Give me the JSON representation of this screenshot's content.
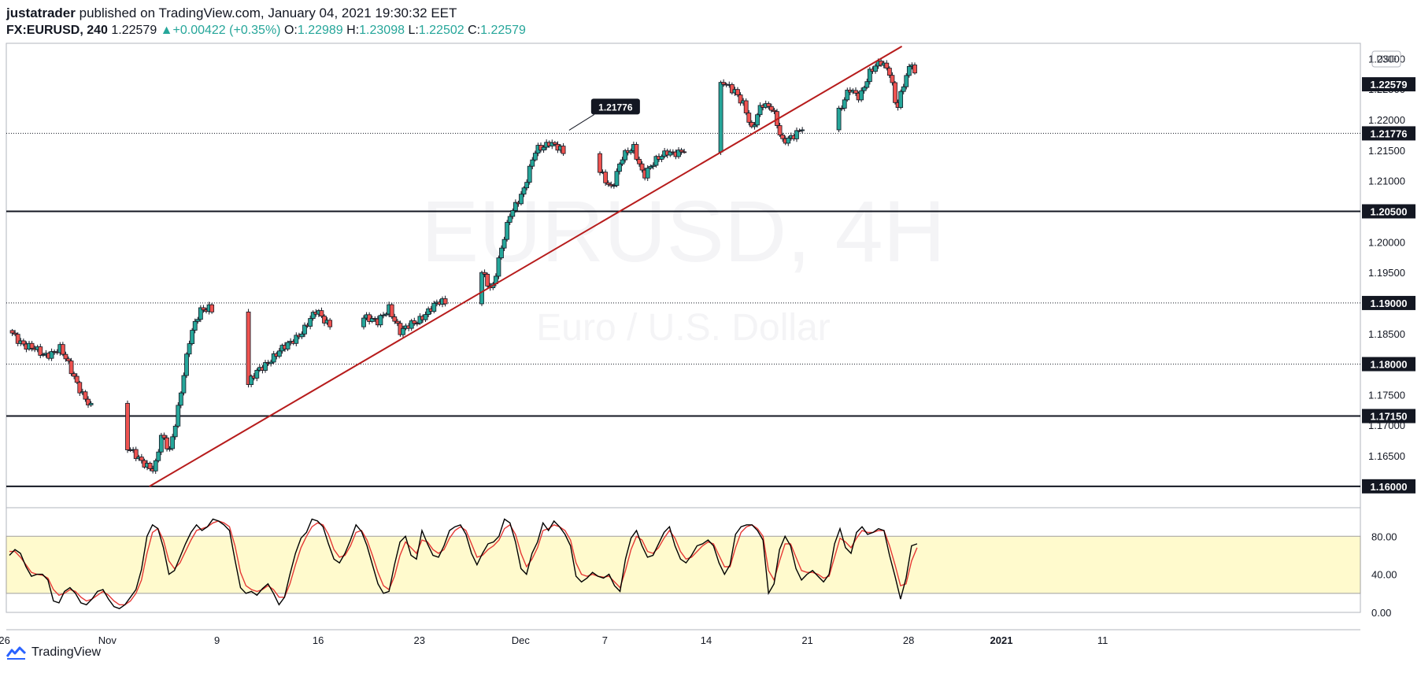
{
  "header": {
    "user": "justatrader",
    "published": "published on TradingView.com, January 04, 2021 19:30:32 EET",
    "symbol": "FX:EURUSD, 240",
    "last": "1.22579",
    "change": "+0.00422 (+0.35%)",
    "o_label": "O:",
    "o_value": "1.22989",
    "h_label": "H:",
    "h_value": "1.23098",
    "l_label": "L:",
    "l_value": "1.22502",
    "c_label": "C:",
    "c_value": "1.22579"
  },
  "footer": {
    "brand": "TradingView"
  },
  "colors": {
    "up": "#26a69a",
    "candle_up": "#26a69a",
    "candle_down": "#ef5350",
    "trendline": "#b71c1c",
    "stoch_k": "#000000",
    "stoch_d": "#e53935",
    "stoch_band": "#fffacd"
  },
  "chart_data": [
    {
      "type": "candlestick",
      "currency_label": "USD",
      "watermark": [
        "EURUSD, 4H",
        "Euro / U.S. Dollar"
      ],
      "ylim": [
        1.1565,
        1.2325
      ],
      "y_ticks": [
        "1.23000",
        "1.22500",
        "1.22000",
        "1.21500",
        "1.21000",
        "1.20500",
        "1.20000",
        "1.19500",
        "1.19000",
        "1.18500",
        "1.18000",
        "1.17500",
        "1.17000",
        "1.16500",
        "1.16000"
      ],
      "x_ticks": [
        "26",
        "Nov",
        "9",
        "16",
        "23",
        "Dec",
        "7",
        "14",
        "21",
        "28",
        "2021",
        "11"
      ],
      "last_price": "1.22579",
      "annotation": {
        "text": "1.21776",
        "value": 1.21776
      },
      "horizontal_levels": [
        {
          "value": 1.205,
          "label": "1.20500",
          "style": "solid"
        },
        {
          "value": 1.19,
          "label": "1.19000",
          "style": "dotted"
        },
        {
          "value": 1.18,
          "label": "1.18000",
          "style": "dotted"
        },
        {
          "value": 1.1715,
          "label": "1.17150",
          "style": "solid"
        },
        {
          "value": 1.16,
          "label": "1.16000",
          "style": "solid"
        },
        {
          "value": 1.21776,
          "label": "1.21776",
          "style": "dotted"
        }
      ],
      "trendline": {
        "from": {
          "day": 8.3,
          "price": 1.16
        },
        "to": {
          "day": 52.9,
          "price": 1.232
        }
      },
      "price_path": [
        [
          0,
          1.1855
        ],
        [
          1,
          1.183
        ],
        [
          2,
          1.1815
        ],
        [
          3,
          1.1825
        ],
        [
          4,
          1.177
        ],
        [
          5,
          1.172
        ],
        [
          6,
          1.1745
        ],
        [
          7,
          1.166
        ],
        [
          8,
          1.164
        ],
        [
          8.6,
          1.1625
        ],
        [
          9,
          1.168
        ],
        [
          9.5,
          1.166
        ],
        [
          10,
          1.173
        ],
        [
          10.7,
          1.184
        ],
        [
          11.3,
          1.189
        ],
        [
          11.8,
          1.1895
        ],
        [
          12.3,
          1.188
        ],
        [
          12.6,
          1.1815
        ],
        [
          13,
          1.181
        ],
        [
          13.5,
          1.183
        ],
        [
          14,
          1.176
        ],
        [
          14.8,
          1.179
        ],
        [
          15.5,
          1.181
        ],
        [
          16.5,
          1.183
        ],
        [
          17.5,
          1.186
        ],
        [
          18.2,
          1.1885
        ],
        [
          18.8,
          1.187
        ],
        [
          19.5,
          1.186
        ],
        [
          20.2,
          1.1845
        ],
        [
          21,
          1.188
        ],
        [
          21.8,
          1.1865
        ],
        [
          22.5,
          1.1895
        ],
        [
          23.2,
          1.185
        ],
        [
          24.5,
          1.188
        ],
        [
          25.5,
          1.19
        ],
        [
          26.5,
          1.1905
        ],
        [
          27.2,
          1.1925
        ],
        [
          28,
          1.1955
        ],
        [
          28.6,
          1.192
        ],
        [
          29.2,
          1.199
        ],
        [
          29.7,
          1.205
        ],
        [
          30.5,
          1.2085
        ],
        [
          31.2,
          1.215
        ],
        [
          32,
          1.2165
        ],
        [
          32.8,
          1.2145
        ],
        [
          33.5,
          1.21
        ],
        [
          34.2,
          1.2125
        ],
        [
          35,
          1.2115
        ],
        [
          35.7,
          1.209
        ],
        [
          36.3,
          1.2135
        ],
        [
          37,
          1.2155
        ],
        [
          37.6,
          1.211
        ],
        [
          38.3,
          1.213
        ],
        [
          39,
          1.215
        ],
        [
          39.7,
          1.2145
        ],
        [
          40.4,
          1.215
        ],
        [
          41.1,
          1.22
        ],
        [
          41.7,
          1.2225
        ],
        [
          42.3,
          1.226
        ],
        [
          43,
          1.225
        ],
        [
          43.5,
          1.2225
        ],
        [
          44,
          1.218
        ],
        [
          44.6,
          1.223
        ],
        [
          45.2,
          1.222
        ],
        [
          45.8,
          1.216
        ],
        [
          46.6,
          1.218
        ],
        [
          47.4,
          1.2195
        ],
        [
          48,
          1.2175
        ],
        [
          48.6,
          1.224
        ],
        [
          49.2,
          1.221
        ],
        [
          49.8,
          1.225
        ],
        [
          50.4,
          1.224
        ],
        [
          51,
          1.2275
        ],
        [
          51.7,
          1.2295
        ],
        [
          52.2,
          1.228
        ],
        [
          52.6,
          1.2215
        ],
        [
          53,
          1.2255
        ],
        [
          53.5,
          1.2295
        ],
        [
          53.8,
          1.2258
        ]
      ]
    },
    {
      "type": "line",
      "indicator": "stochastic",
      "ylim": [
        0,
        110
      ],
      "y_ticks": [
        "80.00",
        "40.00",
        "0.00"
      ],
      "band": [
        20,
        80
      ],
      "k": [
        60,
        66,
        62,
        48,
        38,
        40,
        40,
        34,
        12,
        10,
        22,
        26,
        20,
        10,
        8,
        14,
        22,
        24,
        14,
        6,
        4,
        8,
        16,
        24,
        45,
        80,
        92,
        88,
        68,
        40,
        44,
        58,
        72,
        84,
        92,
        86,
        90,
        98,
        96,
        92,
        86,
        55,
        26,
        20,
        22,
        18,
        25,
        30,
        20,
        8,
        16,
        40,
        62,
        78,
        84,
        98,
        96,
        90,
        72,
        56,
        52,
        62,
        76,
        92,
        85,
        70,
        50,
        30,
        20,
        22,
        50,
        74,
        80,
        60,
        56,
        86,
        72,
        60,
        58,
        70,
        86,
        90,
        92,
        82,
        62,
        50,
        62,
        72,
        74,
        80,
        98,
        94,
        74,
        46,
        40,
        62,
        74,
        94,
        86,
        96,
        90,
        82,
        70,
        38,
        32,
        36,
        42,
        38,
        36,
        40,
        28,
        22,
        56,
        78,
        86,
        70,
        58,
        60,
        72,
        84,
        90,
        70,
        56,
        52,
        60,
        70,
        72,
        76,
        70,
        52,
        40,
        50,
        82,
        90,
        92,
        92,
        86,
        76,
        20,
        30,
        66,
        80,
        70,
        46,
        34,
        40,
        44,
        38,
        32,
        40,
        72,
        88,
        68,
        62,
        84,
        90,
        82,
        84,
        88,
        86,
        60,
        38,
        14,
        36,
        70,
        72
      ],
      "d": [
        64,
        64,
        58,
        50,
        42,
        40,
        39,
        36,
        24,
        18,
        20,
        24,
        22,
        16,
        12,
        14,
        18,
        22,
        18,
        12,
        8,
        8,
        12,
        20,
        34,
        62,
        84,
        88,
        76,
        54,
        46,
        52,
        64,
        76,
        86,
        88,
        90,
        94,
        96,
        94,
        90,
        70,
        42,
        28,
        24,
        22,
        24,
        28,
        24,
        16,
        16,
        30,
        50,
        68,
        80,
        90,
        94,
        92,
        82,
        66,
        58,
        60,
        70,
        84,
        86,
        76,
        60,
        42,
        28,
        24,
        38,
        60,
        74,
        68,
        62,
        76,
        74,
        66,
        62,
        66,
        78,
        86,
        90,
        86,
        72,
        58,
        60,
        66,
        70,
        76,
        88,
        92,
        82,
        62,
        48,
        56,
        68,
        86,
        88,
        92,
        90,
        86,
        76,
        52,
        40,
        38,
        40,
        38,
        37,
        38,
        32,
        26,
        44,
        66,
        80,
        76,
        64,
        62,
        68,
        78,
        86,
        78,
        64,
        56,
        58,
        64,
        70,
        74,
        72,
        60,
        48,
        48,
        68,
        84,
        90,
        92,
        88,
        80,
        44,
        34,
        54,
        72,
        72,
        58,
        44,
        42,
        42,
        40,
        36,
        38,
        58,
        78,
        74,
        68,
        78,
        86,
        84,
        84,
        86,
        86,
        70,
        50,
        28,
        30,
        54,
        68
      ],
      "day_span": [
        0,
        53.8
      ]
    }
  ]
}
